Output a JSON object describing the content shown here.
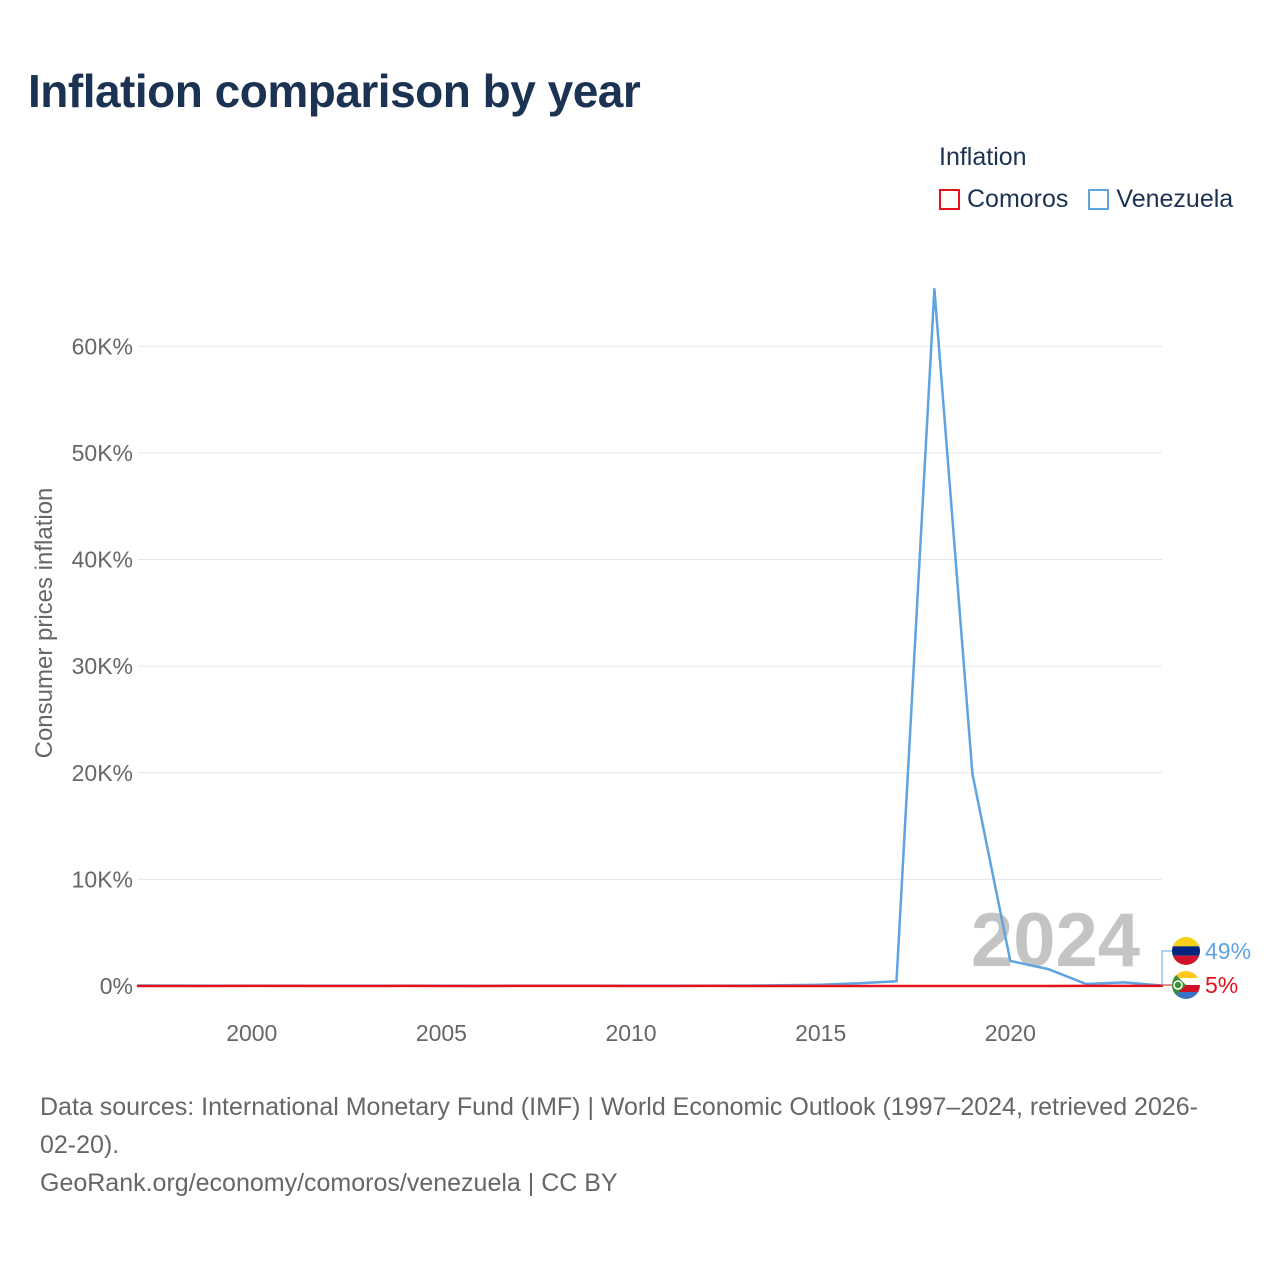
{
  "title": "Inflation comparison by year",
  "legend": {
    "title": "Inflation",
    "items": [
      {
        "name": "Comoros",
        "color": "#e3121b"
      },
      {
        "name": "Venezuela",
        "color": "#5fa3e0"
      }
    ]
  },
  "chart_data": {
    "type": "line",
    "title": "Inflation comparison by year",
    "xlabel": "",
    "ylabel": "Consumer prices inflation",
    "xlim": [
      1997,
      2024
    ],
    "ylim": [
      0,
      65000
    ],
    "x_ticks": [
      2000,
      2005,
      2010,
      2015,
      2020
    ],
    "x_tick_labels": [
      "2000",
      "2005",
      "2010",
      "2015",
      "2020"
    ],
    "y_ticks": [
      0,
      10000,
      20000,
      30000,
      40000,
      50000,
      60000
    ],
    "y_tick_labels": [
      "0%",
      "10K%",
      "20K%",
      "30K%",
      "40K%",
      "50K%",
      "60K%"
    ],
    "grid": true,
    "watermark_year": "2024",
    "x": [
      1997,
      1998,
      1999,
      2000,
      2001,
      2002,
      2003,
      2004,
      2005,
      2006,
      2007,
      2008,
      2009,
      2010,
      2011,
      2012,
      2013,
      2014,
      2015,
      2016,
      2017,
      2018,
      2019,
      2020,
      2021,
      2022,
      2023,
      2024
    ],
    "series": [
      {
        "name": "Comoros",
        "color": "#e3121b",
        "values": [
          3,
          1,
          1,
          5,
          6,
          4,
          4,
          5,
          3,
          3,
          5,
          5,
          5,
          4,
          2,
          6,
          2,
          0,
          1,
          2,
          1,
          2,
          4,
          1,
          0,
          13,
          8,
          5
        ],
        "end_label": "5%"
      },
      {
        "name": "Venezuela",
        "color": "#5fa3e0",
        "values": [
          50,
          36,
          24,
          16,
          13,
          22,
          31,
          22,
          16,
          14,
          19,
          31,
          27,
          28,
          26,
          21,
          41,
          62,
          122,
          255,
          438,
          65374,
          19906,
          2355,
          1588,
          186,
          337,
          49
        ],
        "end_label": "49%"
      }
    ]
  },
  "footer": {
    "line1": "Data sources: International Monetary Fund (IMF) | World Economic Outlook (1997–2024, retrieved 2026-",
    "line2": "02-20).",
    "line3": "GeoRank.org/economy/comoros/venezuela | CC BY"
  }
}
